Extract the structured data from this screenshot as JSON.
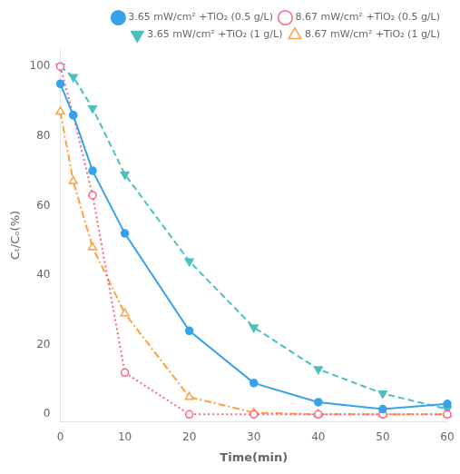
{
  "chart_data": {
    "type": "line",
    "xlabel": "Time(min)",
    "ylabel": "Cₜ/Cₒ(%)",
    "x": [
      0,
      2,
      5,
      10,
      20,
      30,
      40,
      50,
      60
    ],
    "series": [
      {
        "name": "3.65 mW/cm² +TiO₂ (0.5 g/L)",
        "values": [
          95,
          86,
          70,
          52,
          24,
          9,
          3.5,
          1.5,
          3
        ],
        "marker": "circle",
        "line_style": "solid"
      },
      {
        "name": "8.67 mW/cm² +TiO₂ (0.5 g/L)",
        "values": [
          100,
          86,
          63,
          12,
          0,
          0,
          0,
          0,
          0
        ],
        "marker": "open-circle",
        "line_style": "dotted"
      },
      {
        "name": "3.65 mW/cm² +TiO₂ (1 g/L)",
        "values": [
          100,
          97,
          88,
          69,
          44,
          25,
          13,
          6,
          1.5
        ],
        "marker": "triangle-down",
        "line_style": "dashed"
      },
      {
        "name": "8.67 mW/cm² +TiO₂ (1 g/L)",
        "values": [
          87,
          67,
          48,
          29,
          5,
          0.5,
          0,
          0,
          0
        ],
        "marker": "open-triangle",
        "line_style": "dashdot"
      }
    ],
    "xlim": [
      0,
      60
    ],
    "ylim": [
      -2,
      105
    ],
    "xticks": [
      0,
      10,
      20,
      30,
      40,
      50,
      60
    ],
    "yticks": [
      0,
      20,
      40,
      60,
      80,
      100
    ],
    "grid": false,
    "legend": "upper right"
  }
}
